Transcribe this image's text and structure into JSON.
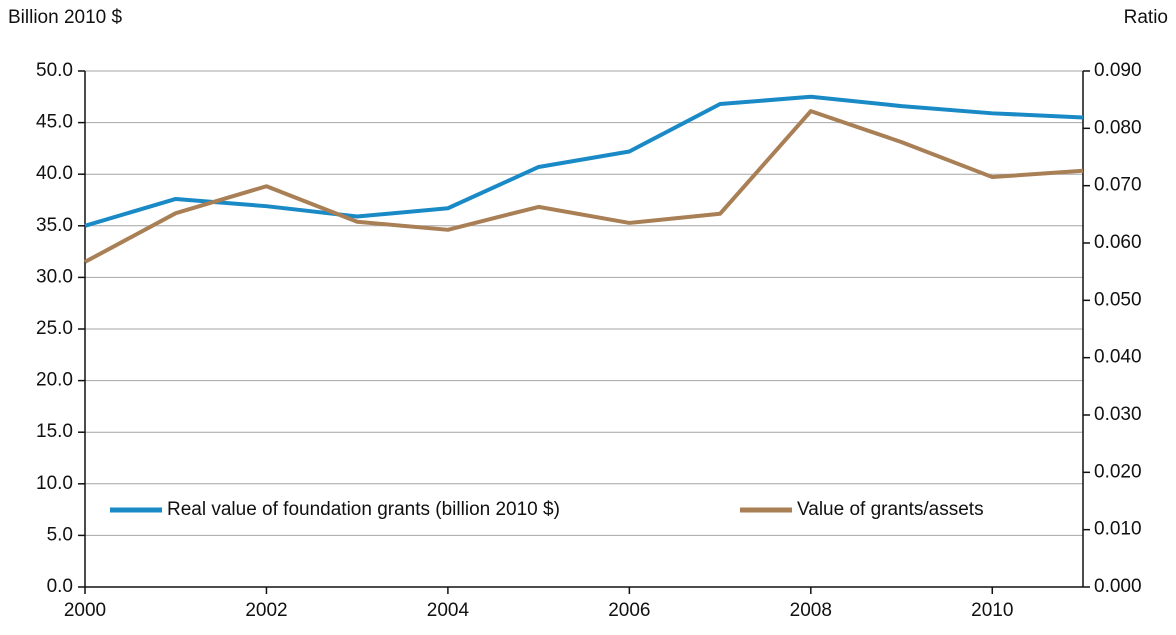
{
  "chart_data": {
    "type": "line",
    "y_label": "Billion 2010 $",
    "y2_label": "Ratio",
    "x": [
      2000,
      2001,
      2002,
      2003,
      2004,
      2005,
      2006,
      2007,
      2008,
      2009,
      2010,
      2011
    ],
    "series": [
      {
        "name": "Real value of foundation grants (billion 2010 $)",
        "color": "#1a8ac6",
        "values": [
          35.0,
          37.6,
          36.9,
          35.9,
          36.7,
          40.7,
          42.2,
          46.8,
          47.5,
          46.6,
          45.9,
          45.5
        ]
      },
      {
        "name": "Value of grants/assets",
        "color": "#a97f56",
        "axis": "y2",
        "values": [
          0.0567,
          0.0652,
          0.0699,
          0.0637,
          0.0623,
          0.0663,
          0.0635,
          0.0651,
          0.083,
          0.0776,
          0.0715,
          0.0726
        ]
      }
    ],
    "xlim": [
      2000,
      2011
    ],
    "xticks": [
      2000,
      2002,
      2004,
      2006,
      2008,
      2010
    ],
    "ylim": [
      0,
      50
    ],
    "yticks": [
      {
        "value": 0,
        "label": "0.0"
      },
      {
        "value": 5,
        "label": "5.0"
      },
      {
        "value": 10,
        "label": "10.0"
      },
      {
        "value": 15,
        "label": "15.0"
      },
      {
        "value": 20,
        "label": "20.0"
      },
      {
        "value": 25,
        "label": "25.0"
      },
      {
        "value": 30,
        "label": "30.0"
      },
      {
        "value": 35,
        "label": "35.0"
      },
      {
        "value": 40,
        "label": "40.0"
      },
      {
        "value": 45,
        "label": "45.0"
      },
      {
        "value": 50,
        "label": "50.0"
      }
    ],
    "y2lim": [
      0,
      0.09
    ],
    "y2ticks": [
      {
        "value": 0,
        "label": "0.000"
      },
      {
        "value": 0.01,
        "label": "0.010"
      },
      {
        "value": 0.02,
        "label": "0.020"
      },
      {
        "value": 0.03,
        "label": "0.030"
      },
      {
        "value": 0.04,
        "label": "0.040"
      },
      {
        "value": 0.05,
        "label": "0.050"
      },
      {
        "value": 0.06,
        "label": "0.060"
      },
      {
        "value": 0.07,
        "label": "0.070"
      },
      {
        "value": 0.08,
        "label": "0.080"
      },
      {
        "value": 0.09,
        "label": "0.090"
      }
    ],
    "grid": true
  }
}
